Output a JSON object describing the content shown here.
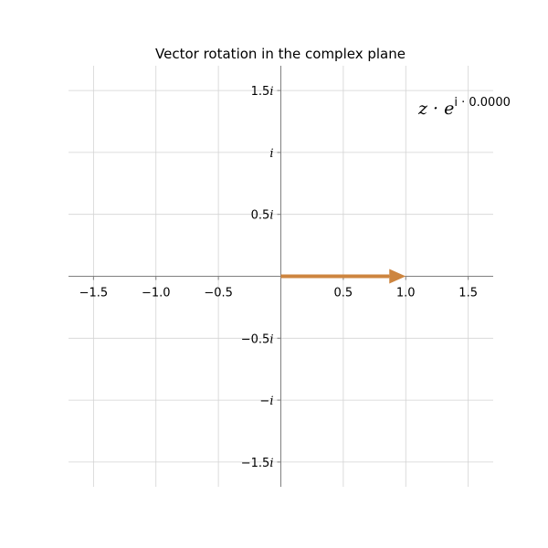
{
  "chart_data": {
    "type": "line",
    "title": "Vector rotation in the complex plane",
    "xlabel": "",
    "ylabel": "",
    "xlim": [
      -1.7,
      1.7
    ],
    "ylim": [
      -1.7,
      1.7
    ],
    "grid": true,
    "x_ticks": [
      {
        "value": -1.5,
        "label": "−1.5"
      },
      {
        "value": -1.0,
        "label": "−1.0"
      },
      {
        "value": -0.5,
        "label": "−0.5"
      },
      {
        "value": 0.5,
        "label": "0.5"
      },
      {
        "value": 1.0,
        "label": "1.0"
      },
      {
        "value": 1.5,
        "label": "1.5"
      }
    ],
    "y_ticks": [
      {
        "value": 1.5,
        "coef": "1.5",
        "unit": "i"
      },
      {
        "value": 1.0,
        "coef": "",
        "unit": "i"
      },
      {
        "value": 0.5,
        "coef": "0.5",
        "unit": "i"
      },
      {
        "value": -0.5,
        "coef": "−0.5",
        "unit": "i"
      },
      {
        "value": -1.0,
        "coef": "−",
        "unit": "i"
      },
      {
        "value": -1.5,
        "coef": "−1.5",
        "unit": "i"
      }
    ],
    "vector": {
      "x0": 0,
      "y0": 0,
      "x1": 1.0,
      "y1": 0.0,
      "color": "#cd853f"
    },
    "annotation": {
      "base": "z · e",
      "exponent": "i · 0.0000"
    }
  }
}
